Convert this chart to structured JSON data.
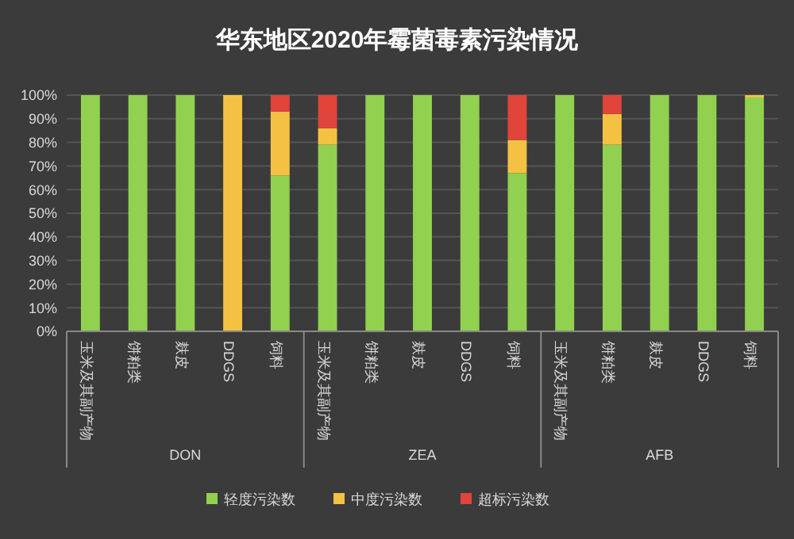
{
  "chart_data": {
    "type": "bar",
    "stacked": true,
    "title": "华东地区2020年霉菌毒素污染情况",
    "categories": [
      "玉米及其副产物",
      "饼粕类",
      "麸皮",
      "DDGS",
      "饲料",
      "玉米及其副产物",
      "饼粕类",
      "麸皮",
      "DDGS",
      "饲料",
      "玉米及其副产物",
      "饼粕类",
      "麸皮",
      "DDGS",
      "饲料"
    ],
    "annotations": [
      "DON",
      "ZEA",
      "AFB"
    ],
    "series": [
      {
        "name": "轻度污染数",
        "color": "#92d050",
        "values": [
          100,
          100,
          100,
          0,
          66,
          79,
          100,
          100,
          100,
          67,
          100,
          79,
          100,
          100,
          99
        ]
      },
      {
        "name": "中度污染数",
        "color": "#f4c142",
        "values": [
          0,
          0,
          0,
          100,
          27,
          7,
          0,
          0,
          0,
          14,
          0,
          13,
          0,
          0,
          1
        ]
      },
      {
        "name": "超标污染数",
        "color": "#e0443a",
        "values": [
          0,
          0,
          0,
          0,
          7,
          14,
          0,
          0,
          0,
          19,
          0,
          8,
          0,
          0,
          0
        ]
      }
    ],
    "ylim": [
      0,
      100
    ],
    "yticks": [
      {
        "value": 0,
        "label": "0%"
      },
      {
        "value": 10,
        "label": "10%"
      },
      {
        "value": 20,
        "label": "20%"
      },
      {
        "value": 30,
        "label": "30%"
      },
      {
        "value": 40,
        "label": "40%"
      },
      {
        "value": 50,
        "label": "50%"
      },
      {
        "value": 60,
        "label": "60%"
      },
      {
        "value": 70,
        "label": "70%"
      },
      {
        "value": 80,
        "label": "80%"
      },
      {
        "value": 90,
        "label": "90%"
      },
      {
        "value": 100,
        "label": "100%"
      }
    ],
    "grid": "y",
    "legend": "bottom"
  }
}
